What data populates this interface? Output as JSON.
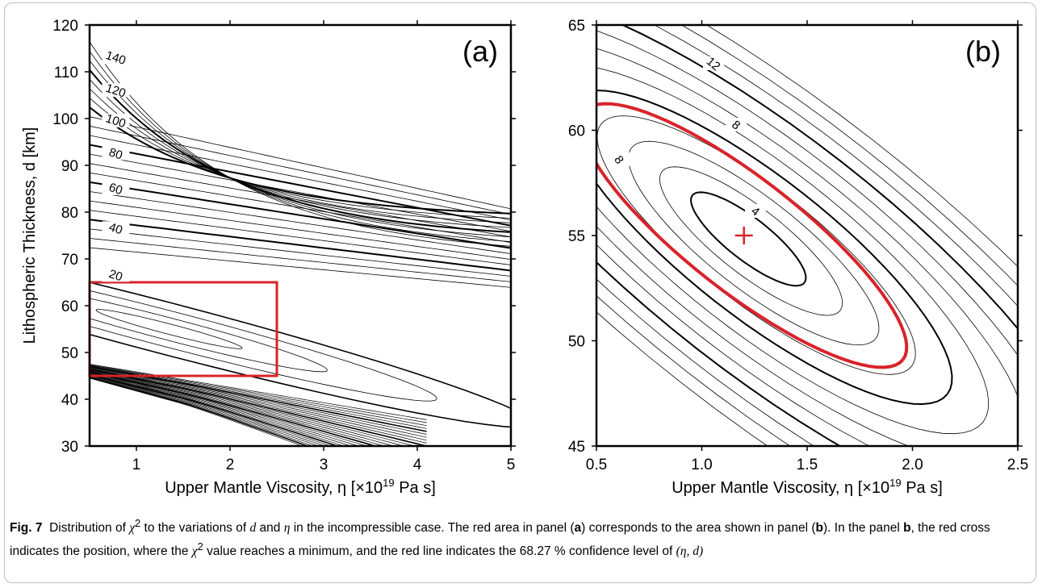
{
  "chart_data": [
    {
      "type": "contour",
      "panel_label": "(a)",
      "xlabel": "Upper Mantle Viscosity, η [×10",
      "xlabel_exp": "19",
      "xlabel_suffix": " Pa s]",
      "ylabel": "Lithospheric Thickness, d [km]",
      "xlim": [
        0.5,
        5
      ],
      "ylim": [
        30,
        120
      ],
      "xticks": [
        "1",
        "2",
        "3",
        "4",
        "5"
      ],
      "yticks": [
        "30",
        "40",
        "50",
        "60",
        "70",
        "80",
        "90",
        "100",
        "110",
        "120"
      ],
      "min_location": {
        "x": 1.2,
        "y": 55
      },
      "contour_levels": [
        20,
        40,
        60,
        80,
        100,
        120,
        140
      ],
      "contour_labels": [
        "20",
        "40",
        "60",
        "80",
        "100",
        "120",
        "140"
      ],
      "highlight_box": {
        "xmin": 0.5,
        "xmax": 2.5,
        "ymin": 45,
        "ymax": 65,
        "color": "#d8232a"
      }
    },
    {
      "type": "contour",
      "panel_label": "(b)",
      "xlabel": "Upper Mantle Viscosity, η [×10",
      "xlabel_exp": "19",
      "xlabel_suffix": " Pa s]",
      "xlim": [
        0.5,
        2.5
      ],
      "ylim": [
        45,
        65
      ],
      "xticks": [
        "0.5",
        "1.0",
        "1.5",
        "2.0",
        "2.5"
      ],
      "yticks": [
        "45",
        "50",
        "55",
        "60",
        "65"
      ],
      "min_location": {
        "x": 1.2,
        "y": 55
      },
      "contour_labels": [
        "4",
        "8",
        "8",
        "12"
      ],
      "confidence_level": "68.27 %",
      "marker_color": "#d8232a"
    }
  ],
  "caption": {
    "fig_label": "Fig. 7",
    "text_parts": [
      "Distribution of ",
      "χ",
      "2",
      " to the variations of ",
      "d",
      " and ",
      "η",
      " in the incompressible case. The red area in panel (",
      "a",
      ") corresponds to the area shown in panel (",
      "b",
      "). In the panel ",
      "b",
      ", the red cross indicates the position, where the ",
      "χ",
      "2",
      " value reaches a minimum, and the red line indicates the 68.27 % confidence level of ",
      "(η, d)"
    ]
  }
}
